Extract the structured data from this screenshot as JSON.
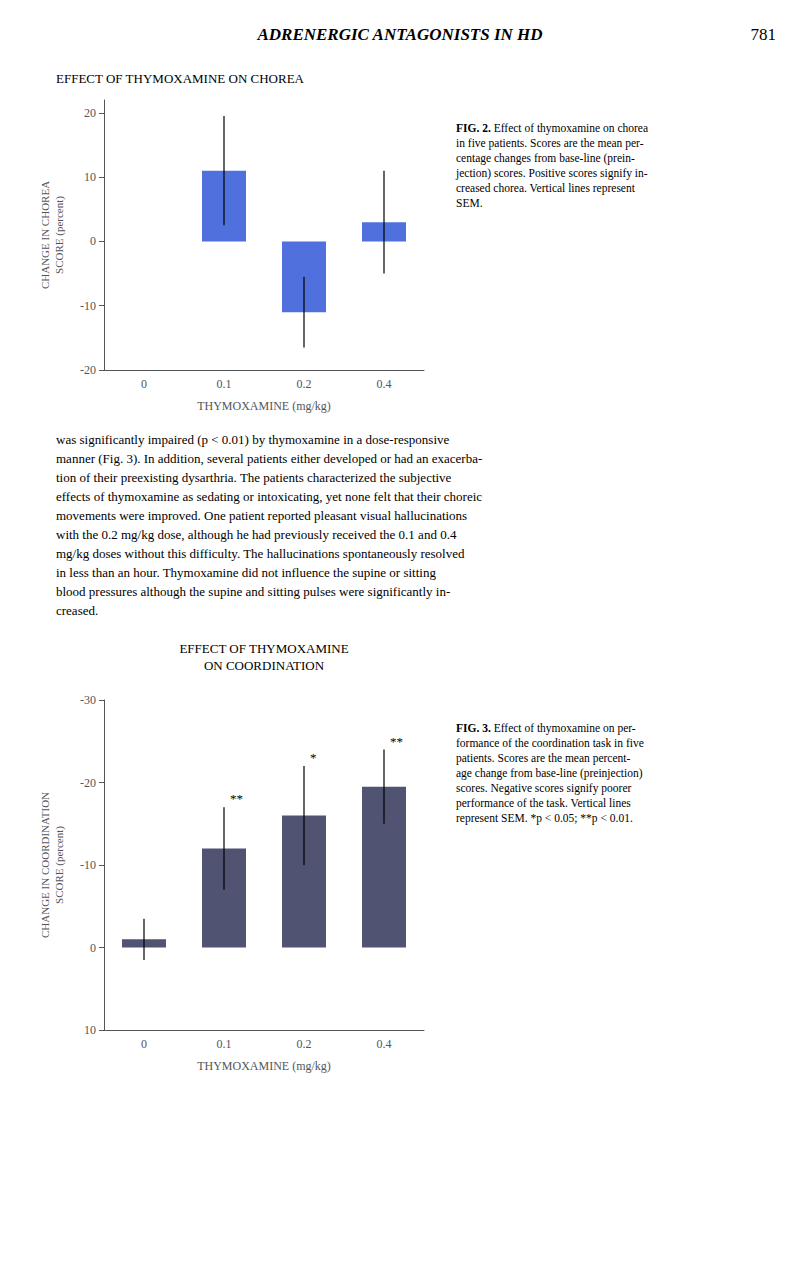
{
  "page_title": "ADRENERGIC ANTAGONISTS IN HD",
  "page_number": "781",
  "text_block": [
    "was significantly impaired (p < 0.01) by thymoxamine in a dose-responsive",
    "manner (Fig. 3). In addition, several patients either developed or had an exacerba-",
    "tion of their preexisting dysarthria. The patients characterized the subjective",
    "effects of thymoxamine as sedating or intoxicating, yet none felt that their choreic",
    "movements were improved. One patient reported pleasant visual hallucinations",
    "with the 0.2 mg/kg dose, although he had previously received the 0.1 and 0.4",
    "mg/kg doses without this difficulty. The hallucinations spontaneously resolved",
    "in less than an hour. Thymoxamine did not influence the supine or sitting",
    "blood pressures although the supine and sitting pulses were significantly in-",
    "creased."
  ],
  "chart_data": [
    {
      "type": "bar",
      "title": "EFFECT OF THYMOXAMINE ON CHOREA",
      "xlabel": "THYMOXAMINE (mg/kg)",
      "ylabel": "CHANGE IN CHOREA\nSCORE (percent)",
      "categories": [
        "0",
        "0.1",
        "0.2",
        "0.4"
      ],
      "values": [
        0.0,
        11.0,
        -11.0,
        3.0
      ],
      "errors": [
        0.0,
        8.5,
        5.5,
        8.0
      ],
      "ylim": [
        -20,
        22
      ],
      "yticks": [
        -20,
        -10,
        0,
        10,
        20
      ],
      "grid": false,
      "caption_title": "FIG. 2.",
      "caption": " Effect of thymoxamine on chorea\nin five patients. Scores are the mean per-\ncentage changes from base-line (prein-\njection) scores. Positive scores signify in-\ncreased chorea. Vertical lines represent\nSEM."
    },
    {
      "type": "bar",
      "title": "EFFECT OF THYMOXAMINE\nON COORDINATION",
      "xlabel": "THYMOXAMINE (mg/kg)",
      "ylabel": "CHANGE IN COORDINATION\nSCORE (percent)",
      "categories": [
        "0",
        "0.1",
        "0.2",
        "0.4"
      ],
      "values": [
        -1.0,
        -12.0,
        -16.0,
        -19.5
      ],
      "errors": [
        2.5,
        5.0,
        6.0,
        4.5
      ],
      "ylim": [
        10,
        -30
      ],
      "yticks": [
        -30,
        -20,
        -10,
        0,
        10
      ],
      "grid": false,
      "annotations": [
        {
          "category": "0.1",
          "text": "**"
        },
        {
          "category": "0.2",
          "text": "*"
        },
        {
          "category": "0.4",
          "text": "**"
        }
      ],
      "caption_title": "FIG. 3.",
      "caption": " Effect of thymoxamine on per-\nformance of the coordination task in five\npatients. Scores are the mean percent-\nage change from base-line (preinjection)\nscores. Negative scores signify poorer\nperformance of the task. Vertical lines\nrepresent SEM. *p < 0.05; **p < 0.01."
    }
  ]
}
